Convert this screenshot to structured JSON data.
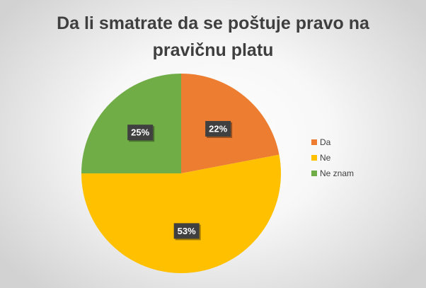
{
  "chart_data": {
    "type": "pie",
    "title": "Da li smatrate da se poštuje pravo na pravičnu platu",
    "categories": [
      "Da",
      "Ne",
      "Ne znam"
    ],
    "values": [
      22,
      53,
      25
    ],
    "labels": [
      "22%",
      "53%",
      "25%"
    ],
    "colors": [
      "#ed7d31",
      "#ffc000",
      "#70ad47"
    ],
    "start_angle_deg": 0,
    "direction": "clockwise",
    "legend_position": "right"
  }
}
